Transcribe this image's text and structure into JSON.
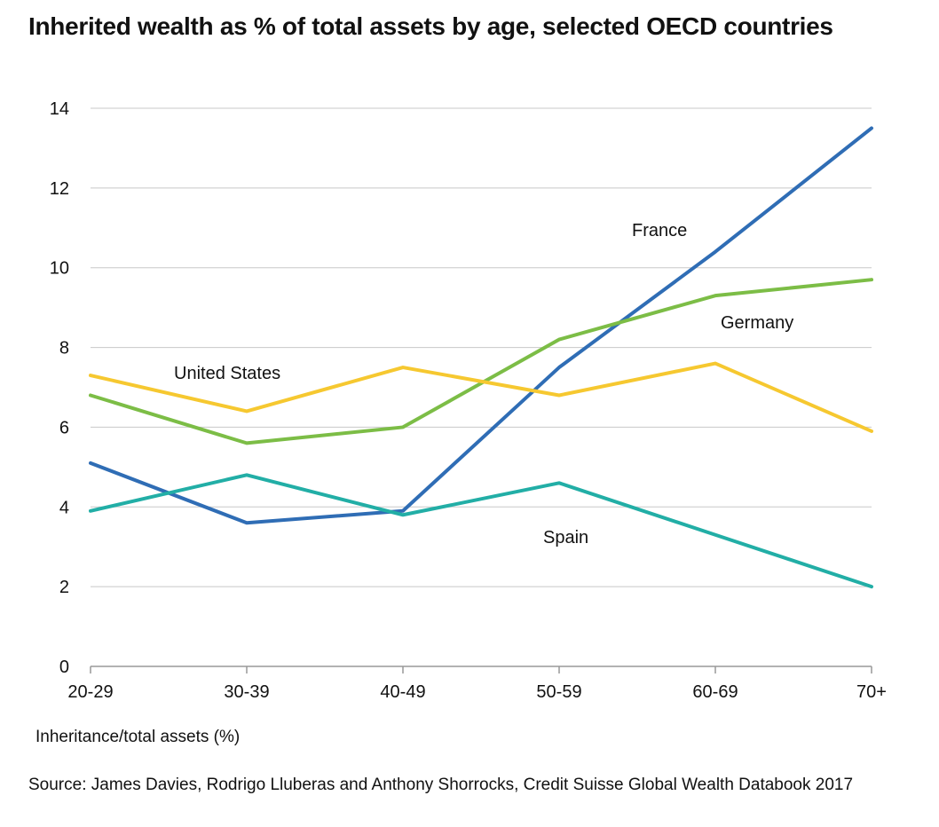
{
  "title": "Inherited wealth as % of total assets by age, selected OECD countries",
  "note": "Inheritance/total assets (%)",
  "source": "Source: James Davies, Rodrigo Lluberas and Anthony Shorrocks, Credit Suisse Global Wealth Databook 2017",
  "chart_data": {
    "type": "line",
    "title": "Inherited wealth as % of total assets by age, selected OECD countries",
    "xlabel": "",
    "ylabel": "Inheritance/total assets (%)",
    "categories": [
      "20-29",
      "30-39",
      "40-49",
      "50-59",
      "60-69",
      "70+"
    ],
    "ylim": [
      0,
      14
    ],
    "yticks": [
      0,
      2,
      4,
      6,
      8,
      10,
      12,
      14
    ],
    "grid": true,
    "series": [
      {
        "name": "France",
        "color": "#2f6db5",
        "values": [
          5.1,
          3.6,
          3.9,
          7.5,
          10.4,
          13.5
        ]
      },
      {
        "name": "Germany",
        "color": "#7cbd46",
        "values": [
          6.8,
          5.6,
          6.0,
          8.2,
          9.3,
          9.7
        ]
      },
      {
        "name": "United States",
        "color": "#f6c830",
        "values": [
          7.3,
          6.4,
          7.5,
          6.8,
          7.6,
          5.9
        ]
      },
      {
        "name": "Spain",
        "color": "#22aea6",
        "values": [
          3.9,
          4.8,
          3.8,
          4.6,
          3.3,
          2.0
        ]
      }
    ]
  }
}
